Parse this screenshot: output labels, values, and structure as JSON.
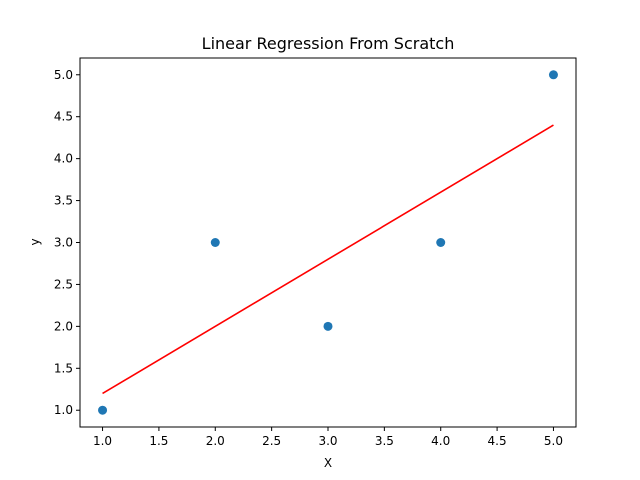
{
  "chart_data": {
    "type": "scatter",
    "title": "Linear Regression From Scratch",
    "xlabel": "X",
    "ylabel": "y",
    "xlim": [
      0.8,
      5.2
    ],
    "ylim": [
      0.8,
      5.2
    ],
    "xticks": [
      1.0,
      1.5,
      2.0,
      2.5,
      3.0,
      3.5,
      4.0,
      4.5,
      5.0
    ],
    "yticks": [
      1.0,
      1.5,
      2.0,
      2.5,
      3.0,
      3.5,
      4.0,
      4.5,
      5.0
    ],
    "grid": false,
    "points": {
      "x": [
        1,
        2,
        3,
        4,
        5
      ],
      "y": [
        1,
        3,
        2,
        3,
        5
      ],
      "color": "#1f77b4"
    },
    "fit_line": {
      "x": [
        1,
        5
      ],
      "y": [
        1.2,
        4.4
      ],
      "color": "#ff0000"
    }
  }
}
